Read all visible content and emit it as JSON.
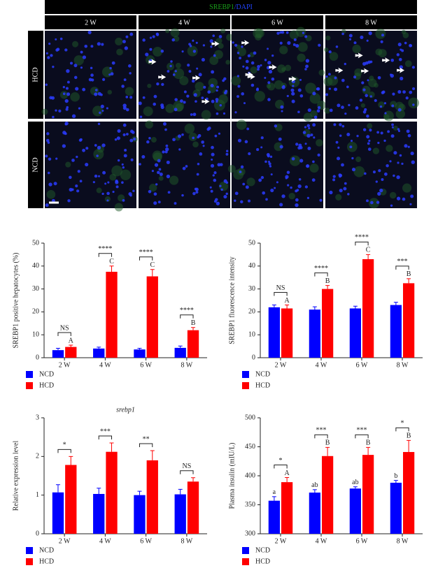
{
  "image_panel": {
    "title_parts": [
      "SREBP1",
      "/DAPI"
    ],
    "columns": [
      "2 W",
      "4 W",
      "6 W",
      "8 W"
    ],
    "rows": [
      "HCD",
      "NCD"
    ]
  },
  "chart_data": [
    {
      "type": "bar",
      "ylabel": "SREBP1 positive hepatocytes (%)",
      "categories": [
        "2 W",
        "4 W",
        "6 W",
        "8 W"
      ],
      "ylim": [
        0,
        50
      ],
      "yticks": [
        0,
        10,
        20,
        30,
        40,
        50
      ],
      "series": [
        {
          "name": "NCD",
          "color": "#0000ff",
          "values": [
            3.3,
            4.0,
            3.6,
            4.3
          ],
          "errors": [
            0.8,
            0.6,
            0.5,
            0.8
          ]
        },
        {
          "name": "HCD",
          "color": "#ff0000",
          "values": [
            4.7,
            37.5,
            35.5,
            12
          ],
          "errors": [
            0.8,
            2.5,
            3,
            1.2
          ],
          "letters": [
            "A",
            "C",
            "C",
            "B"
          ]
        }
      ],
      "significance": [
        "NS",
        "****",
        "****",
        "****"
      ]
    },
    {
      "type": "bar",
      "ylabel": "SREBP1 fluorescence intensity",
      "categories": [
        "2 W",
        "4 W",
        "6 W",
        "8 W"
      ],
      "ylim": [
        0,
        50
      ],
      "yticks": [
        0,
        10,
        20,
        30,
        40,
        50
      ],
      "series": [
        {
          "name": "NCD",
          "color": "#0000ff",
          "values": [
            22,
            21,
            21.5,
            23
          ],
          "errors": [
            1,
            1.2,
            1,
            1.2
          ]
        },
        {
          "name": "HCD",
          "color": "#ff0000",
          "values": [
            21.5,
            30,
            43,
            32.5
          ],
          "errors": [
            1.5,
            1.5,
            2,
            2
          ],
          "letters": [
            "A",
            "B",
            "C",
            "B"
          ]
        }
      ],
      "significance": [
        "NS",
        "****",
        "****",
        "***"
      ]
    },
    {
      "type": "bar",
      "title": "srebp1",
      "ylabel": "Relative expression level",
      "categories": [
        "2 W",
        "4 W",
        "6 W",
        "8 W"
      ],
      "ylim": [
        0,
        3
      ],
      "yticks": [
        0,
        1,
        2,
        3
      ],
      "series": [
        {
          "name": "NCD",
          "color": "#0000ff",
          "values": [
            1.07,
            1.03,
            1.0,
            1.02
          ],
          "errors": [
            0.2,
            0.15,
            0.1,
            0.13
          ]
        },
        {
          "name": "HCD",
          "color": "#ff0000",
          "values": [
            1.78,
            2.12,
            1.9,
            1.35
          ],
          "errors": [
            0.22,
            0.23,
            0.25,
            0.1
          ]
        }
      ],
      "significance": [
        "*",
        "***",
        "**",
        "NS"
      ]
    },
    {
      "type": "bar",
      "ylabel": "Plasma insulin (mIU/L)",
      "categories": [
        "2 W",
        "4 W",
        "6 W",
        "8 W"
      ],
      "ylim": [
        300,
        500
      ],
      "yticks": [
        300,
        350,
        400,
        450,
        500
      ],
      "series": [
        {
          "name": "NCD",
          "color": "#0000ff",
          "values": [
            357,
            371,
            378,
            388
          ],
          "errors": [
            7,
            5,
            3,
            4
          ],
          "letters": [
            "a",
            "ab",
            "ab",
            "b"
          ]
        },
        {
          "name": "HCD",
          "color": "#ff0000",
          "values": [
            389,
            434,
            436,
            441
          ],
          "errors": [
            8,
            15,
            13,
            20
          ],
          "letters": [
            "A",
            "B",
            "B",
            "B"
          ]
        }
      ],
      "significance": [
        "*",
        "***",
        "***",
        "*"
      ]
    }
  ]
}
